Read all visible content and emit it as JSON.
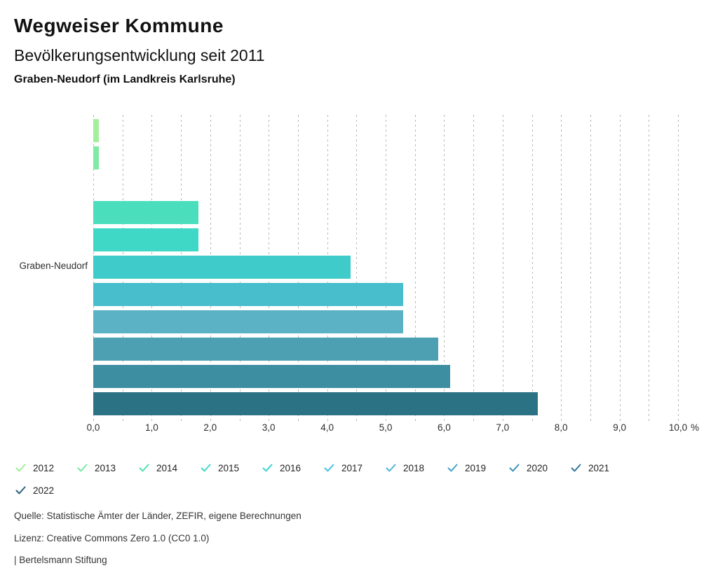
{
  "header": {
    "title": "Wegweiser Kommune",
    "subtitle": "Bevölkerungsentwicklung seit 2011",
    "region": "Graben-Neudorf (im Landkreis Karlsruhe)"
  },
  "chart_data": {
    "type": "bar",
    "orientation": "horizontal",
    "category": "Graben-Neudorf",
    "xlabel_unit": "%",
    "xlim": [
      0.0,
      10.0
    ],
    "gridlines": "dashed vertical every 0.5",
    "legend_position": "bottom",
    "x_ticks": [
      "0,0",
      "1,0",
      "2,0",
      "3,0",
      "4,0",
      "5,0",
      "6,0",
      "7,0",
      "8,0",
      "9,0",
      "10,0"
    ],
    "series": [
      {
        "name": "2012",
        "value": 0.1,
        "color": "#a4ef9b",
        "check_color": "#9fee9a"
      },
      {
        "name": "2013",
        "value": 0.1,
        "color": "#80eaa5",
        "check_color": "#75e9a2"
      },
      {
        "name": "2014",
        "value": 0.0,
        "color": "#62e4b0",
        "check_color": "#50e2b4"
      },
      {
        "name": "2015",
        "value": 1.8,
        "color": "#4bdebd",
        "check_color": "#3fdcc6"
      },
      {
        "name": "2016",
        "value": 1.8,
        "color": "#3fd8c6",
        "check_color": "#3ed2d8"
      },
      {
        "name": "2017",
        "value": 4.4,
        "color": "#3fcbca",
        "check_color": "#48c2e0"
      },
      {
        "name": "2018",
        "value": 5.3,
        "color": "#48bdcb",
        "check_color": "#4fb5d8"
      },
      {
        "name": "2019",
        "value": 5.3,
        "color": "#5cb2c5",
        "check_color": "#45a3cb"
      },
      {
        "name": "2020",
        "value": 5.9,
        "color": "#4da0b2",
        "check_color": "#3c92ba"
      },
      {
        "name": "2021",
        "value": 6.1,
        "color": "#3e8ea1",
        "check_color": "#33769f"
      },
      {
        "name": "2022",
        "value": 7.6,
        "color": "#2b7384",
        "check_color": "#2a5f80"
      }
    ]
  },
  "footer": {
    "source": "Quelle: Statistische Ämter der Länder, ZEFIR, eigene Berechnungen",
    "license": "Lizenz: Creative Commons Zero 1.0 (CC0 1.0)",
    "attribution": "| Bertelsmann Stiftung"
  }
}
